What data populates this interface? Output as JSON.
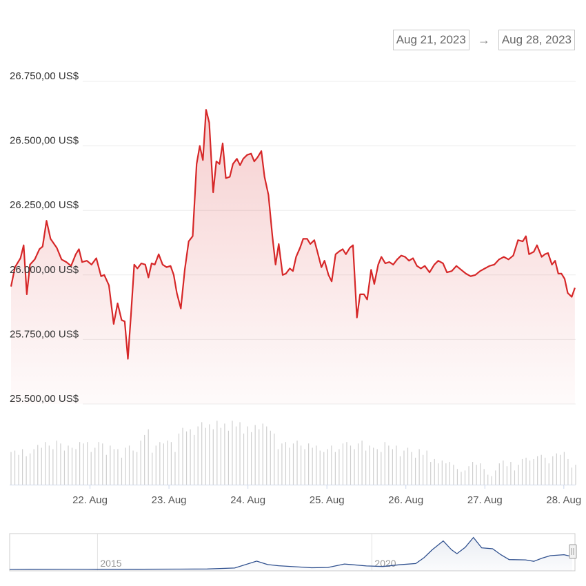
{
  "date_range": {
    "from": "Aug 21, 2023",
    "arrow": "→",
    "to": "Aug 28, 2023"
  },
  "colors": {
    "price_line": "#d62728",
    "volume_bar": "#cfcfcf",
    "navigator_line": "#2e4f8e",
    "grid": "#ececec"
  },
  "chart_data": [
    {
      "type": "area",
      "title": "",
      "xlabel": "",
      "ylabel": "",
      "ylim": [
        25500,
        26750
      ],
      "y_ticks": [
        25500,
        25750,
        26000,
        26250,
        26500,
        26750
      ],
      "y_tick_labels": [
        "25.500,00 US$",
        "25.750,00 US$",
        "26.000,00 US$",
        "26.250,00 US$",
        "26.500,00 US$",
        "26.750,00 US$"
      ],
      "xlim": [
        21.0,
        28.15
      ],
      "x_ticks": [
        22,
        23,
        24,
        25,
        26,
        27,
        28
      ],
      "x_tick_labels": [
        "22. Aug",
        "23. Aug",
        "24. Aug",
        "25. Aug",
        "26. Aug",
        "27. Aug",
        "28. Aug"
      ],
      "x_unit": "day of August 2023",
      "grid": true,
      "series": [
        {
          "points": [
            [
              21.0,
              25955
            ],
            [
              21.05,
              26030
            ],
            [
              21.12,
              26065
            ],
            [
              21.16,
              26115
            ],
            [
              21.2,
              25925
            ],
            [
              21.24,
              26040
            ],
            [
              21.3,
              26060
            ],
            [
              21.36,
              26100
            ],
            [
              21.4,
              26110
            ],
            [
              21.45,
              26210
            ],
            [
              21.5,
              26140
            ],
            [
              21.58,
              26105
            ],
            [
              21.64,
              26060
            ],
            [
              21.7,
              26050
            ],
            [
              21.76,
              26035
            ],
            [
              21.82,
              26080
            ],
            [
              21.86,
              26100
            ],
            [
              21.9,
              26050
            ],
            [
              21.96,
              26055
            ],
            [
              22.02,
              26040
            ],
            [
              22.08,
              26065
            ],
            [
              22.14,
              25995
            ],
            [
              22.18,
              26000
            ],
            [
              22.24,
              25960
            ],
            [
              22.3,
              25810
            ],
            [
              22.35,
              25890
            ],
            [
              22.4,
              25825
            ],
            [
              22.44,
              25820
            ],
            [
              22.48,
              25675
            ],
            [
              22.52,
              25850
            ],
            [
              22.56,
              26040
            ],
            [
              22.6,
              26025
            ],
            [
              22.65,
              26045
            ],
            [
              22.7,
              26040
            ],
            [
              22.74,
              25990
            ],
            [
              22.78,
              26045
            ],
            [
              22.82,
              26040
            ],
            [
              22.87,
              26080
            ],
            [
              22.92,
              26040
            ],
            [
              22.97,
              26030
            ],
            [
              23.02,
              26035
            ],
            [
              23.06,
              26000
            ],
            [
              23.1,
              25930
            ],
            [
              23.15,
              25870
            ],
            [
              23.2,
              26020
            ],
            [
              23.25,
              26130
            ],
            [
              23.3,
              26150
            ],
            [
              23.35,
              26430
            ],
            [
              23.39,
              26500
            ],
            [
              23.43,
              26445
            ],
            [
              23.47,
              26640
            ],
            [
              23.51,
              26590
            ],
            [
              23.56,
              26320
            ],
            [
              23.6,
              26440
            ],
            [
              23.64,
              26430
            ],
            [
              23.68,
              26510
            ],
            [
              23.72,
              26375
            ],
            [
              23.77,
              26380
            ],
            [
              23.81,
              26430
            ],
            [
              23.86,
              26450
            ],
            [
              23.9,
              26425
            ],
            [
              23.94,
              26450
            ],
            [
              23.99,
              26465
            ],
            [
              24.04,
              26470
            ],
            [
              24.08,
              26440
            ],
            [
              24.12,
              26455
            ],
            [
              24.17,
              26480
            ],
            [
              24.21,
              26380
            ],
            [
              24.26,
              26310
            ],
            [
              24.31,
              26150
            ],
            [
              24.35,
              26040
            ],
            [
              24.39,
              26120
            ],
            [
              24.44,
              26000
            ],
            [
              24.48,
              26005
            ],
            [
              24.53,
              26025
            ],
            [
              24.57,
              26015
            ],
            [
              24.61,
              26070
            ],
            [
              24.66,
              26105
            ],
            [
              24.7,
              26140
            ],
            [
              24.75,
              26140
            ],
            [
              24.79,
              26120
            ],
            [
              24.84,
              26135
            ],
            [
              24.88,
              26090
            ],
            [
              24.93,
              26030
            ],
            [
              24.97,
              26055
            ],
            [
              25.02,
              26000
            ],
            [
              25.06,
              25975
            ],
            [
              25.11,
              26080
            ],
            [
              25.15,
              26090
            ],
            [
              25.2,
              26100
            ],
            [
              25.24,
              26080
            ],
            [
              25.29,
              26105
            ],
            [
              25.33,
              26115
            ],
            [
              25.38,
              25835
            ],
            [
              25.42,
              25925
            ],
            [
              25.47,
              25925
            ],
            [
              25.51,
              25905
            ],
            [
              25.56,
              26020
            ],
            [
              25.6,
              25965
            ],
            [
              25.65,
              26040
            ],
            [
              25.69,
              26070
            ],
            [
              25.74,
              26045
            ],
            [
              25.79,
              26050
            ],
            [
              25.84,
              26040
            ],
            [
              25.89,
              26060
            ],
            [
              25.94,
              26075
            ],
            [
              25.99,
              26070
            ],
            [
              26.04,
              26055
            ],
            [
              26.09,
              26065
            ],
            [
              26.14,
              26035
            ],
            [
              26.19,
              26025
            ],
            [
              26.24,
              26035
            ],
            [
              26.3,
              26010
            ],
            [
              26.36,
              26040
            ],
            [
              26.41,
              26055
            ],
            [
              26.47,
              26045
            ],
            [
              26.52,
              26010
            ],
            [
              26.58,
              26015
            ],
            [
              26.64,
              26035
            ],
            [
              26.7,
              26020
            ],
            [
              26.76,
              26005
            ],
            [
              26.82,
              25995
            ],
            [
              26.88,
              26000
            ],
            [
              26.94,
              26015
            ],
            [
              27.0,
              26025
            ],
            [
              27.06,
              26035
            ],
            [
              27.12,
              26040
            ],
            [
              27.18,
              26060
            ],
            [
              27.24,
              26070
            ],
            [
              27.3,
              26060
            ],
            [
              27.36,
              26075
            ],
            [
              27.42,
              26135
            ],
            [
              27.48,
              26130
            ],
            [
              27.52,
              26150
            ],
            [
              27.56,
              26080
            ],
            [
              27.62,
              26090
            ],
            [
              27.66,
              26115
            ],
            [
              27.72,
              26070
            ],
            [
              27.76,
              26080
            ],
            [
              27.8,
              26085
            ],
            [
              27.85,
              26040
            ],
            [
              27.89,
              26055
            ],
            [
              27.93,
              26005
            ],
            [
              27.97,
              26005
            ],
            [
              28.01,
              25985
            ],
            [
              28.05,
              25930
            ],
            [
              28.1,
              25915
            ],
            [
              28.14,
              25950
            ]
          ]
        }
      ]
    },
    {
      "type": "bar",
      "title": "",
      "note": "trading volume (no axis labels shown)",
      "values": [
        0.46,
        0.48,
        0.42,
        0.5,
        0.4,
        0.44,
        0.5,
        0.56,
        0.52,
        0.6,
        0.55,
        0.5,
        0.62,
        0.58,
        0.48,
        0.55,
        0.52,
        0.5,
        0.6,
        0.58,
        0.6,
        0.46,
        0.52,
        0.6,
        0.58,
        0.42,
        0.55,
        0.5,
        0.5,
        0.38,
        0.52,
        0.55,
        0.48,
        0.46,
        0.62,
        0.7,
        0.78,
        0.45,
        0.55,
        0.6,
        0.58,
        0.62,
        0.6,
        0.46,
        0.72,
        0.8,
        0.75,
        0.78,
        0.7,
        0.82,
        0.88,
        0.8,
        0.85,
        0.78,
        0.9,
        0.8,
        0.86,
        0.76,
        0.9,
        0.82,
        0.88,
        0.72,
        0.82,
        0.74,
        0.84,
        0.78,
        0.86,
        0.82,
        0.76,
        0.72,
        0.5,
        0.58,
        0.6,
        0.52,
        0.58,
        0.62,
        0.55,
        0.5,
        0.58,
        0.52,
        0.55,
        0.48,
        0.46,
        0.5,
        0.55,
        0.46,
        0.5,
        0.58,
        0.6,
        0.55,
        0.5,
        0.58,
        0.62,
        0.48,
        0.55,
        0.52,
        0.5,
        0.46,
        0.6,
        0.55,
        0.5,
        0.55,
        0.4,
        0.48,
        0.52,
        0.46,
        0.38,
        0.5,
        0.42,
        0.48,
        0.32,
        0.36,
        0.3,
        0.34,
        0.3,
        0.32,
        0.28,
        0.22,
        0.18,
        0.2,
        0.26,
        0.32,
        0.28,
        0.3,
        0.22,
        0.14,
        0.12,
        0.2,
        0.3,
        0.34,
        0.26,
        0.32,
        0.2,
        0.28,
        0.36,
        0.38,
        0.34,
        0.36,
        0.4,
        0.42,
        0.38,
        0.3,
        0.4,
        0.44,
        0.42,
        0.46,
        0.36,
        0.24,
        0.28
      ]
    },
    {
      "type": "line",
      "title": "",
      "note": "navigator overview of full price history",
      "x_ticks": [
        2015,
        2020
      ],
      "x_tick_labels": [
        "2015",
        "2020"
      ],
      "xlim": [
        2013.4,
        2023.7
      ],
      "series": [
        {
          "points": [
            [
              2013.4,
              0
            ],
            [
              2013.8,
              400
            ],
            [
              2014.5,
              500
            ],
            [
              2015.0,
              250
            ],
            [
              2015.8,
              400
            ],
            [
              2016.5,
              650
            ],
            [
              2017.0,
              1000
            ],
            [
              2017.5,
              3000
            ],
            [
              2017.9,
              17000
            ],
            [
              2018.1,
              10000
            ],
            [
              2018.3,
              7500
            ],
            [
              2018.9,
              3500
            ],
            [
              2019.2,
              4000
            ],
            [
              2019.5,
              11000
            ],
            [
              2019.9,
              7200
            ],
            [
              2020.2,
              6000
            ],
            [
              2020.5,
              9500
            ],
            [
              2020.8,
              12000
            ],
            [
              2020.95,
              24000
            ],
            [
              2021.1,
              40000
            ],
            [
              2021.3,
              58000
            ],
            [
              2021.45,
              40000
            ],
            [
              2021.55,
              32000
            ],
            [
              2021.7,
              45000
            ],
            [
              2021.85,
              65000
            ],
            [
              2022.0,
              44000
            ],
            [
              2022.2,
              42000
            ],
            [
              2022.35,
              30000
            ],
            [
              2022.5,
              20000
            ],
            [
              2022.8,
              19500
            ],
            [
              2022.95,
              16500
            ],
            [
              2023.1,
              23000
            ],
            [
              2023.25,
              28000
            ],
            [
              2023.5,
              30000
            ],
            [
              2023.65,
              26000
            ]
          ]
        }
      ]
    }
  ]
}
